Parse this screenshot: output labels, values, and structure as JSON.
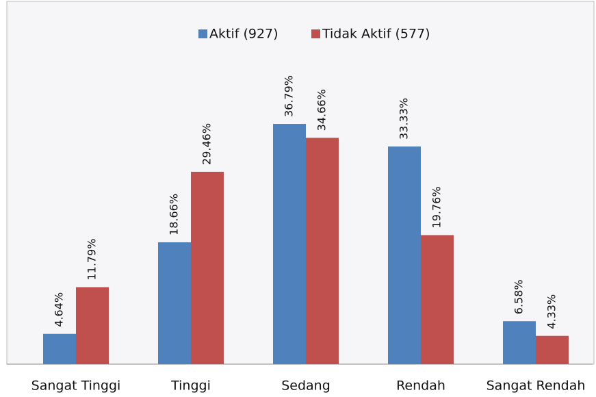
{
  "chart_data": {
    "type": "bar",
    "legend": "top",
    "categories": [
      "Sangat Tinggi",
      "Tinggi",
      "Sedang",
      "Rendah",
      "Sangat Rendah"
    ],
    "series": [
      {
        "name": "Aktif (927)",
        "color": "#4f81bd",
        "values": [
          4.64,
          18.66,
          36.79,
          33.33,
          6.58
        ],
        "value_labels": [
          "4.64%",
          "18.66%",
          "36.79%",
          "33.33%",
          "6.58%"
        ]
      },
      {
        "name": "Tidak Aktif (577)",
        "color": "#c0504d",
        "values": [
          11.79,
          29.46,
          34.66,
          19.76,
          4.33
        ],
        "value_labels": [
          "11.79%",
          "29.46%",
          "34.66%",
          "19.76%",
          "4.33%"
        ]
      }
    ]
  }
}
